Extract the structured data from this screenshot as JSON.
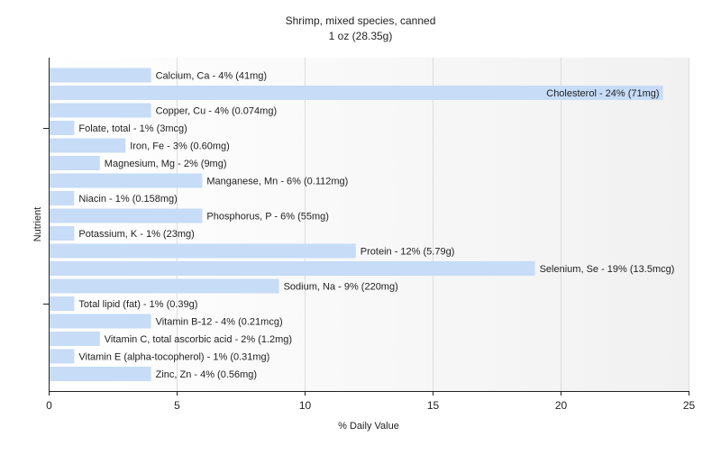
{
  "chart_data": {
    "type": "bar",
    "orientation": "horizontal",
    "title": "Shrimp, mixed species, canned",
    "subtitle": "1 oz (28.35g)",
    "xlabel": "% Daily Value",
    "ylabel": "Nutrient",
    "xlim": [
      0,
      25
    ],
    "xticks": [
      0,
      5,
      10,
      15,
      20,
      25
    ],
    "xtick_labels": [
      "0",
      "5",
      "10",
      "15",
      "20",
      "25"
    ],
    "grid": true,
    "bar_color": "#c6dcf7",
    "categories": [
      "Calcium, Ca",
      "Cholesterol",
      "Copper, Cu",
      "Folate, total",
      "Iron, Fe",
      "Magnesium, Mg",
      "Manganese, Mn",
      "Niacin",
      "Phosphorus, P",
      "Potassium, K",
      "Protein",
      "Selenium, Se",
      "Sodium, Na",
      "Total lipid (fat)",
      "Vitamin B-12",
      "Vitamin C, total ascorbic acid",
      "Vitamin E (alpha-tocopherol)",
      "Zinc, Zn"
    ],
    "values": [
      4,
      24,
      4,
      1,
      3,
      2,
      6,
      1,
      6,
      1,
      12,
      19,
      9,
      1,
      4,
      2,
      1,
      4
    ],
    "labels": [
      "Calcium, Ca - 4% (41mg)",
      "Cholesterol - 24% (71mg)",
      "Copper, Cu - 4% (0.074mg)",
      "Folate, total - 1% (3mcg)",
      "Iron, Fe - 3% (0.60mg)",
      "Magnesium, Mg - 2% (9mg)",
      "Manganese, Mn - 6% (0.112mg)",
      "Niacin - 1% (0.158mg)",
      "Phosphorus, P - 6% (55mg)",
      "Potassium, K - 1% (23mg)",
      "Protein - 12% (5.79g)",
      "Selenium, Se - 19% (13.5mcg)",
      "Sodium, Na - 9% (220mg)",
      "Total lipid (fat) - 1% (0.39g)",
      "Vitamin B-12 - 4% (0.21mcg)",
      "Vitamin C, total ascorbic acid - 2% (1.2mg)",
      "Vitamin E (alpha-tocopherol) - 1% (0.31mg)",
      "Zinc, Zn - 4% (0.56mg)"
    ]
  }
}
